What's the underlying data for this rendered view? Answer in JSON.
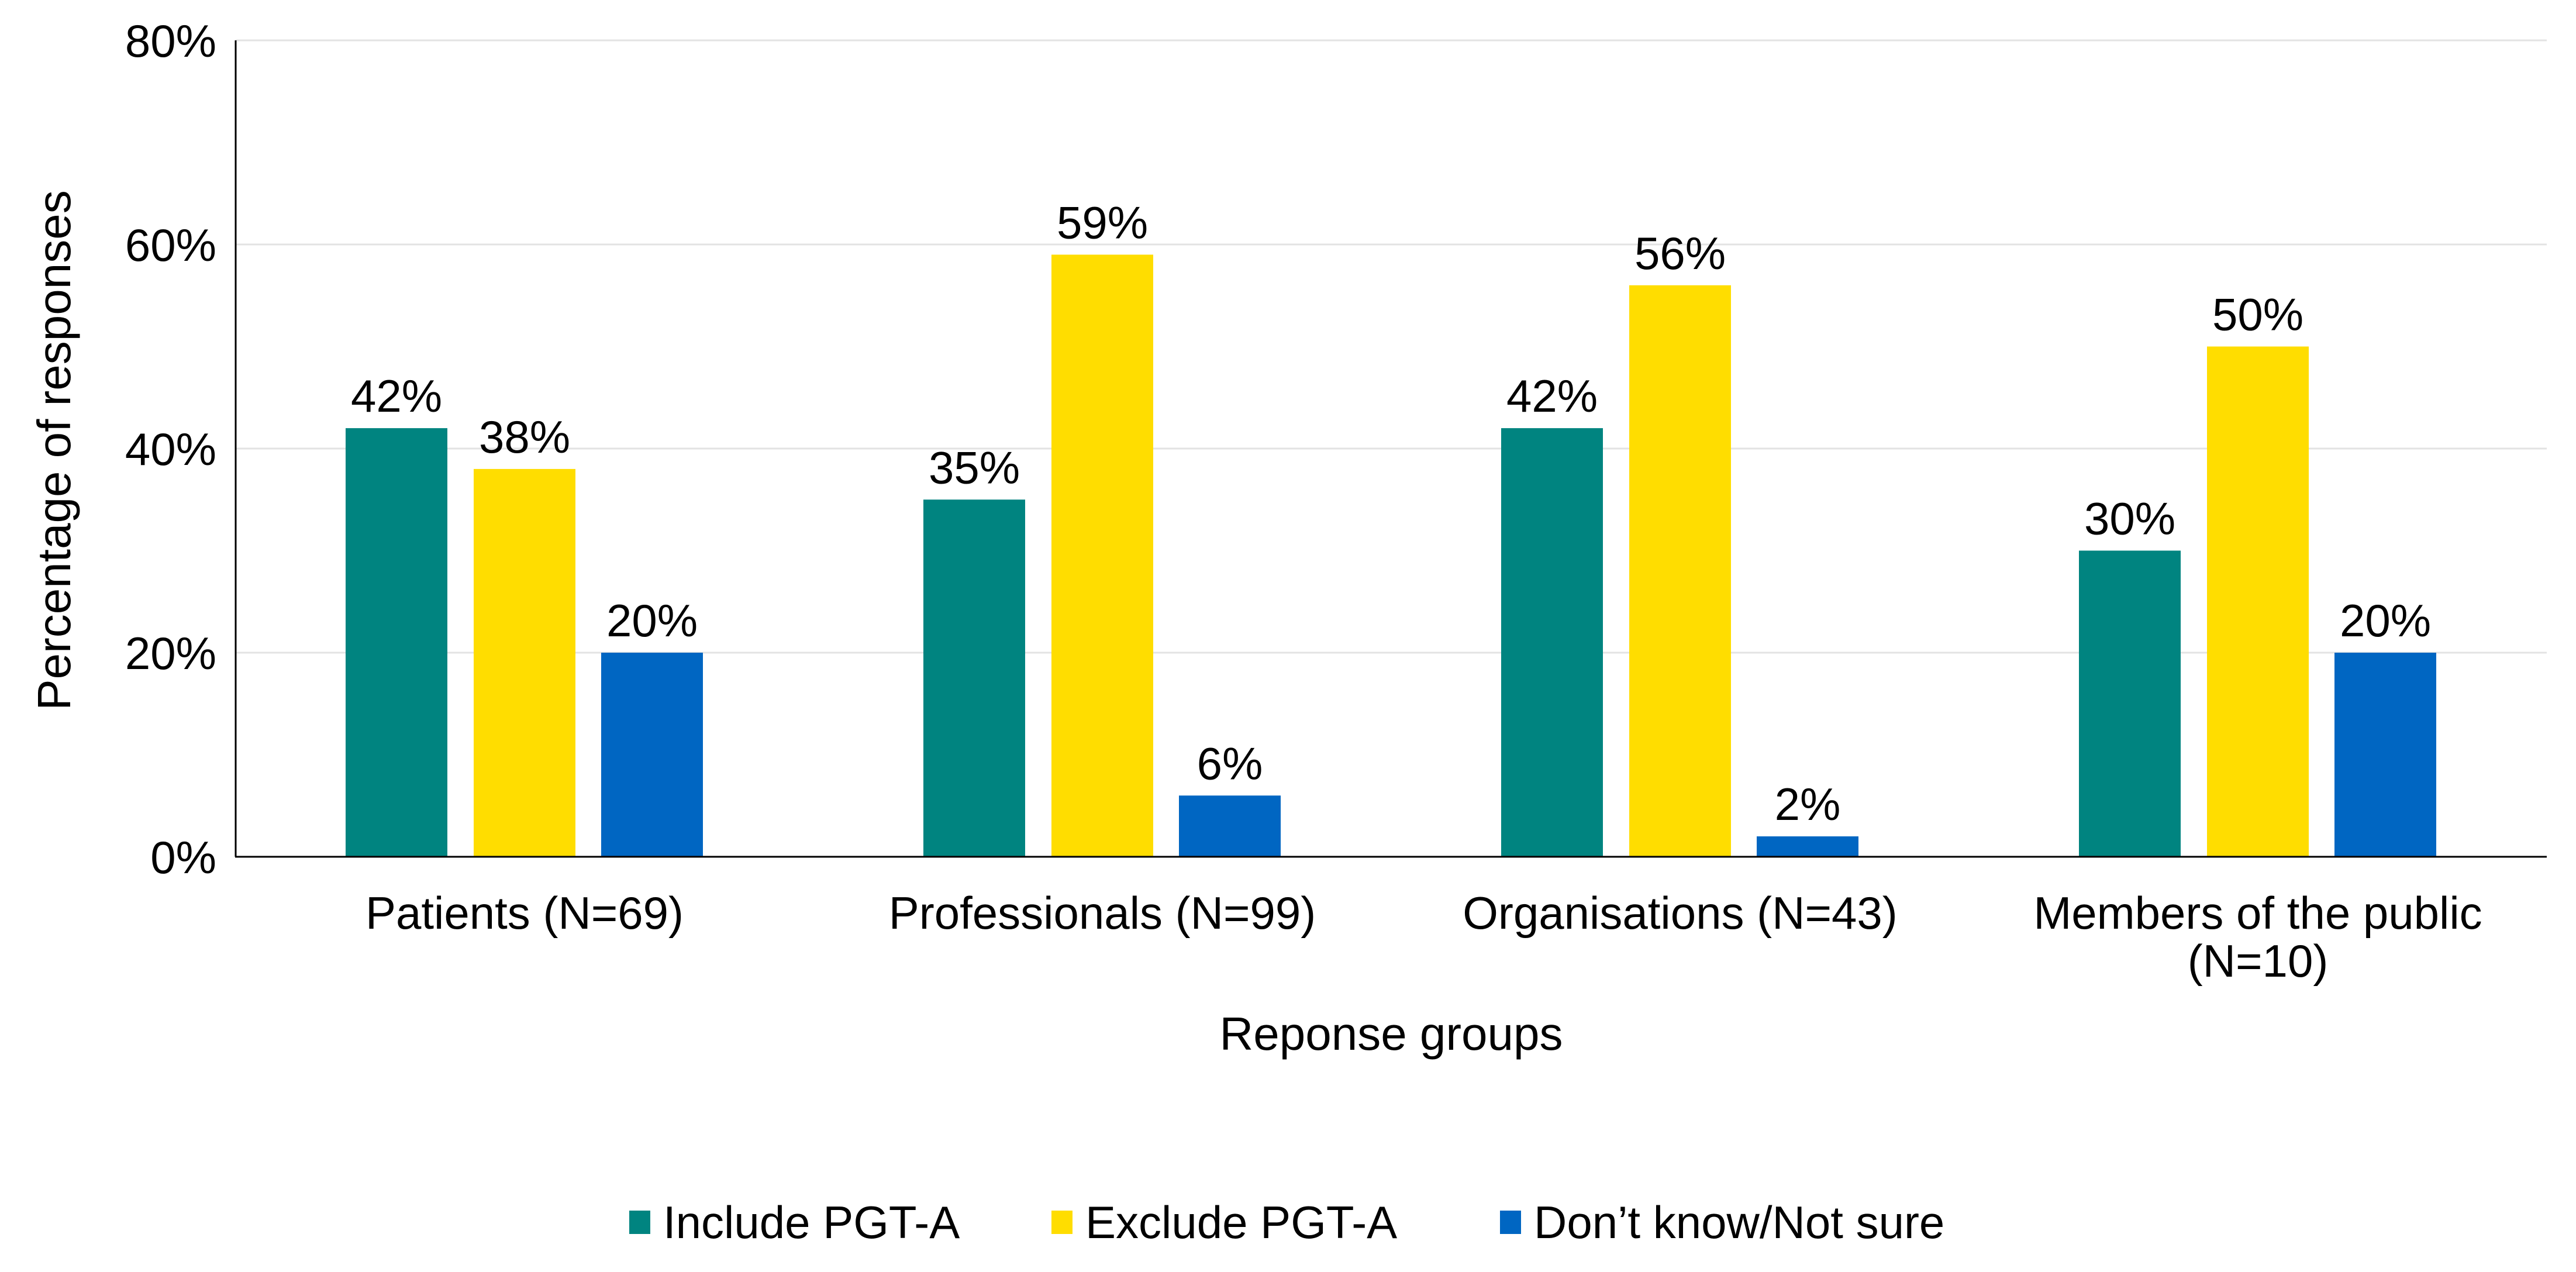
{
  "chart_data": {
    "type": "bar",
    "title": "",
    "xlabel": "Reponse groups",
    "ylabel": "Percentage of responses",
    "ylim": [
      0,
      80
    ],
    "yticks": [
      "0%",
      "20%",
      "40%",
      "60%",
      "80%"
    ],
    "grid": true,
    "legend_position": "bottom",
    "categories": [
      [
        "Patients (N=69)"
      ],
      [
        "Professionals (N=99)"
      ],
      [
        "Organisations (N=43)"
      ],
      [
        "Members of the public",
        "(N=10)"
      ]
    ],
    "series": [
      {
        "name": "Include PGT-A",
        "color": "#008480",
        "values": [
          42,
          35,
          42,
          30
        ],
        "labels": [
          "42%",
          "35%",
          "42%",
          "30%"
        ]
      },
      {
        "name": "Exclude PGT-A",
        "color": "#FFDD00",
        "values": [
          38,
          59,
          56,
          50
        ],
        "labels": [
          "38%",
          "59%",
          "56%",
          "50%"
        ]
      },
      {
        "name": "Don’t know/Not sure",
        "color": "#0066C2",
        "values": [
          20,
          6,
          2,
          20
        ],
        "labels": [
          "20%",
          "6%",
          "2%",
          "20%"
        ]
      }
    ]
  }
}
